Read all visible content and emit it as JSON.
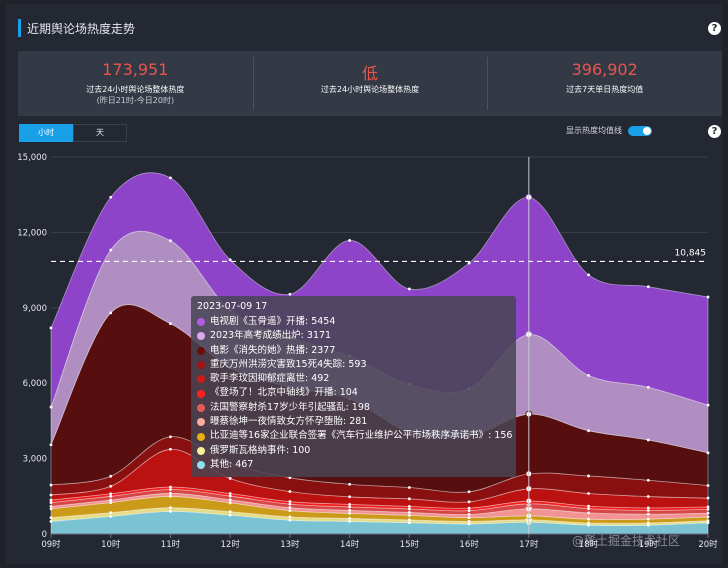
{
  "header": {
    "title": "近期舆论场热度走势"
  },
  "stats": [
    {
      "value": "173,951",
      "label": "过去24小时舆论场整体热度",
      "sub": "(昨日21时-今日20时)"
    },
    {
      "value": "低",
      "label": "过去24小时舆论场整体热度",
      "sub": ""
    },
    {
      "value": "396,902",
      "label": "过去7天单日热度均值",
      "sub": ""
    }
  ],
  "tabs": {
    "hour": "小时",
    "day": "天"
  },
  "toggle": {
    "label": "显示热度均值线"
  },
  "watermark": "@稀土掘金技术社区",
  "colors": {
    "accent": "#1aa0e8",
    "stat_value": "#e8554d",
    "background": "#242833"
  },
  "chart_data": {
    "type": "area",
    "stacked": true,
    "title": "近期舆论场热度走势",
    "x": [
      "09时",
      "10时",
      "11时",
      "12时",
      "13时",
      "14时",
      "15时",
      "16时",
      "17时",
      "18时",
      "19时",
      "20时"
    ],
    "ylim": [
      0,
      15000
    ],
    "yticks": [
      "0",
      "3,000",
      "6,000",
      "9,000",
      "12,000",
      "15,000"
    ],
    "mean_line": {
      "value": 10845,
      "label": "10,845"
    },
    "highlight_index": 8,
    "series": [
      {
        "name": "其他",
        "color": "#7ecbdc",
        "values": [
          500,
          700,
          900,
          750,
          550,
          500,
          450,
          400,
          467,
          350,
          350,
          450
        ]
      },
      {
        "name": "俄罗斯瓦格纳事件",
        "color": "#f0e68c",
        "values": [
          150,
          150,
          150,
          140,
          130,
          120,
          110,
          100,
          100,
          90,
          90,
          80
        ]
      },
      {
        "name": "比亚迪等16家企业联合签署《汽车行业维护公平市场秩序承诺书》",
        "color": "#d4a017",
        "values": [
          350,
          400,
          450,
          350,
          250,
          200,
          180,
          150,
          156,
          150,
          150,
          150
        ]
      },
      {
        "name": "曝蔡徐坤一夜情致女方怀孕堕胎",
        "color": "#ff9a9a",
        "values": [
          100,
          100,
          120,
          120,
          120,
          120,
          120,
          130,
          281,
          250,
          200,
          150
        ]
      },
      {
        "name": "法国警察射杀17岁少年引起骚乱",
        "color": "#e04848",
        "values": [
          150,
          150,
          150,
          150,
          140,
          140,
          140,
          150,
          198,
          170,
          150,
          150
        ]
      },
      {
        "name": "《登场了！北京中轴线》开播",
        "color": "#ff1a1a",
        "values": [
          100,
          100,
          100,
          100,
          100,
          100,
          100,
          100,
          104,
          100,
          100,
          100
        ]
      },
      {
        "name": "歌手李玟因抑郁症离世",
        "color": "#c41010",
        "values": [
          200,
          300,
          1500,
          600,
          400,
          300,
          300,
          250,
          492,
          500,
          450,
          350
        ]
      },
      {
        "name": "重庆万州洪涝灾害致15死4失踪",
        "color": "#8e0f0f",
        "values": [
          400,
          400,
          500,
          600,
          550,
          500,
          450,
          400,
          593,
          700,
          650,
          500
        ]
      },
      {
        "name": "电影《消失的她》热播",
        "color": "#5a0d0d",
        "values": [
          1600,
          6500,
          4500,
          3800,
          3600,
          3400,
          2200,
          2200,
          2377,
          1800,
          1600,
          1300
        ]
      },
      {
        "name": "2023年高考成绩出炉",
        "color": "#b894c9",
        "values": [
          1500,
          2500,
          3300,
          2300,
          2000,
          1700,
          1900,
          1900,
          3171,
          2200,
          2100,
          1900
        ]
      },
      {
        "name": "电视剧《玉骨遥》开播",
        "color": "#9446d1",
        "values": [
          3150,
          2100,
          2500,
          2000,
          1700,
          4600,
          3800,
          5000,
          5454,
          4000,
          4000,
          4300
        ]
      }
    ],
    "tooltip": {
      "title": "2023-07-09 17",
      "rows": [
        {
          "name": "电视剧《玉骨遥》开播",
          "value": "5454",
          "color": "#b45be6"
        },
        {
          "name": "2023年高考成绩出炉",
          "value": "3171",
          "color": "#dba6ef"
        },
        {
          "name": "电影《消失的她》热播",
          "value": "2377",
          "color": "#6b0b0b"
        },
        {
          "name": "重庆万州洪涝灾害致15死4失踪",
          "value": "593",
          "color": "#a01414"
        },
        {
          "name": "歌手李玟因抑郁症离世",
          "value": "492",
          "color": "#d01a1a"
        },
        {
          "name": "《登场了！北京中轴线》开播",
          "value": "104",
          "color": "#ff2020"
        },
        {
          "name": "法国警察射杀17岁少年引起骚乱",
          "value": "198",
          "color": "#e85a5a"
        },
        {
          "name": "曝蔡徐坤一夜情致女方怀孕堕胎",
          "value": "281",
          "color": "#ffaaa0"
        },
        {
          "name": "比亚迪等16家企业联合签署《汽车行业维护公平市场秩序承诺书》",
          "value": "156",
          "color": "#e8b010"
        },
        {
          "name": "俄罗斯瓦格纳事件",
          "value": "100",
          "color": "#f5ee9a"
        },
        {
          "name": "其他",
          "value": "467",
          "color": "#8fe0ee"
        }
      ]
    }
  }
}
